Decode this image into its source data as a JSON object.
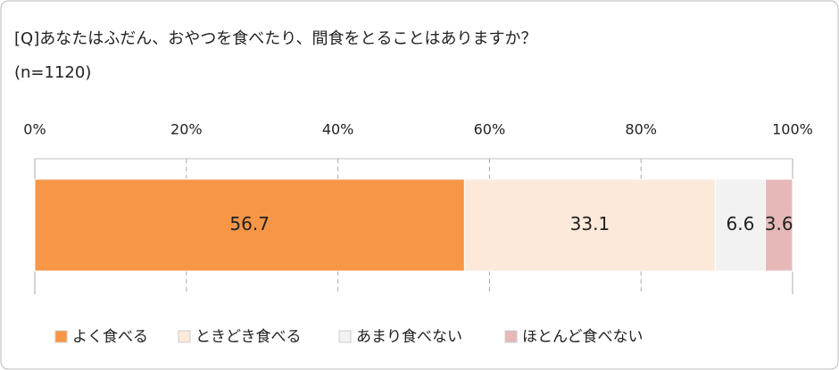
{
  "chart_data": {
    "type": "stacked-bar-horizontal",
    "title": "[Q]あなたはふだん、おやつを食べたり、間食をとることはありますか？",
    "subtitle": "(n=1120)",
    "categories": [
      null
    ],
    "series": [
      {
        "name": "よく食べる",
        "color": "#f79646",
        "values": [
          56.7
        ]
      },
      {
        "name": "ときどき食べる",
        "color": "#fde9d9",
        "values": [
          33.1
        ]
      },
      {
        "name": "あまり食べない",
        "color": "#f2f2f2",
        "values": [
          6.6
        ]
      },
      {
        "name": "ほとんど食べない",
        "color": "#e6b9b8",
        "values": [
          3.6
        ]
      }
    ],
    "xlim": [
      0,
      100
    ],
    "xticks": [
      {
        "value": 0,
        "label": "0%"
      },
      {
        "value": 20,
        "label": "20%"
      },
      {
        "value": 40,
        "label": "40%"
      },
      {
        "value": 60,
        "label": "60%"
      },
      {
        "value": 80,
        "label": "80%"
      },
      {
        "value": 100,
        "label": "100%"
      }
    ],
    "grid": true,
    "legend": "bottom"
  }
}
